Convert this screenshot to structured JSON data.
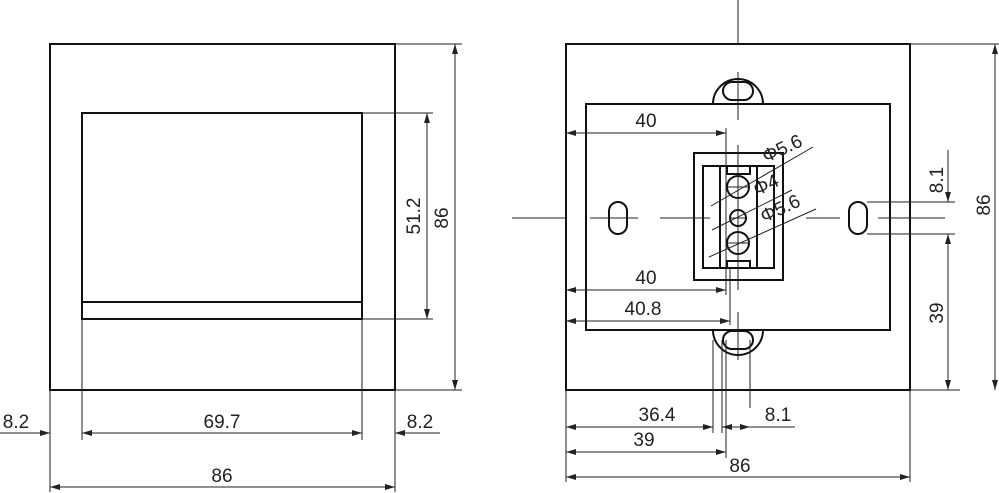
{
  "left_view": {
    "dims": {
      "frame_height": "86",
      "inner_height": "51.2",
      "left_margin": "8.2",
      "inner_width": "69.7",
      "right_margin": "8.2",
      "frame_width": "86"
    }
  },
  "right_view": {
    "dims": {
      "top_offset": "40",
      "bottom_offset": "40",
      "offset_40_8": "40.8",
      "slot_spacing": "8.1",
      "frame_height": "86",
      "lower_height": "39",
      "left_36_4": "36.4",
      "pin_spacing": "8.1",
      "left_39": "39",
      "frame_width": "86"
    },
    "diameters": {
      "upper": "Φ5.6",
      "middle": "Φ4",
      "lower": "Φ5.6"
    }
  }
}
